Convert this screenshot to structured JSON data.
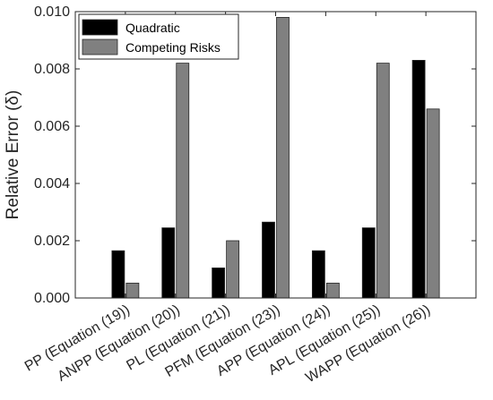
{
  "chart_data": {
    "type": "bar",
    "title": "",
    "xlabel": "",
    "ylabel": "Relative Error (δ)",
    "ylim": [
      0,
      0.01
    ],
    "yticks": [
      "0.000",
      "0.002",
      "0.004",
      "0.006",
      "0.008",
      "0.010"
    ],
    "categories": [
      "PP (Equation (19))",
      "ANPP (Equation (20))",
      "PL (Equation (21))",
      "PFM (Equation (23))",
      "APP (Equation (24))",
      "APL (Equation (25))",
      "WAPP (Equation (26))"
    ],
    "series": [
      {
        "name": "Quadratic",
        "color": "#000000",
        "values": [
          0.00165,
          0.00245,
          0.00105,
          0.00265,
          0.00165,
          0.00245,
          0.0083
        ]
      },
      {
        "name": "Competing Risks",
        "color": "#808080",
        "values": [
          0.00052,
          0.0082,
          0.002,
          0.0098,
          0.00052,
          0.0082,
          0.0066
        ]
      }
    ],
    "grid": false,
    "legend": "top-left"
  }
}
